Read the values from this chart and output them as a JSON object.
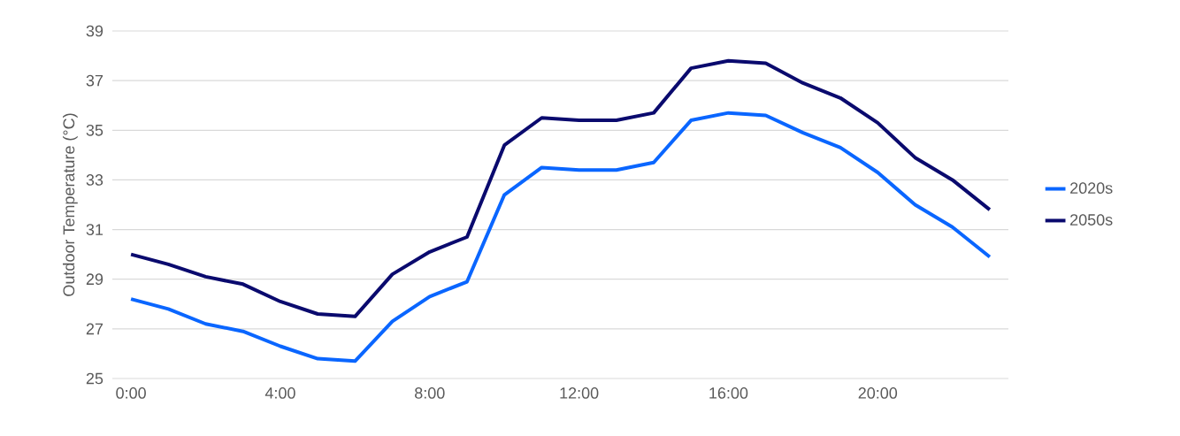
{
  "chart_data": {
    "type": "line",
    "ylabel": "Outdoor Temperature (°C)",
    "x": [
      0,
      1,
      2,
      3,
      4,
      5,
      6,
      7,
      8,
      9,
      10,
      11,
      12,
      13,
      14,
      15,
      16,
      17,
      18,
      19,
      20,
      21,
      22,
      23
    ],
    "series": [
      {
        "name": "2020s",
        "color": "#0a66ff",
        "values": [
          28.2,
          27.8,
          27.2,
          26.9,
          26.3,
          25.8,
          25.7,
          27.3,
          28.3,
          28.9,
          32.4,
          33.5,
          33.4,
          33.4,
          33.7,
          35.4,
          35.7,
          35.6,
          34.9,
          34.3,
          33.3,
          32.0,
          31.1,
          29.9
        ]
      },
      {
        "name": "2050s",
        "color": "#0a0a6e",
        "values": [
          30.0,
          29.6,
          29.1,
          28.8,
          28.1,
          27.6,
          27.5,
          29.2,
          30.1,
          30.7,
          34.4,
          35.5,
          35.4,
          35.4,
          35.7,
          37.5,
          37.8,
          37.7,
          36.9,
          36.3,
          35.3,
          33.9,
          33.0,
          31.8
        ]
      }
    ],
    "xlim": [
      -0.5,
      23.5
    ],
    "xticks": [
      {
        "value": 0,
        "label": "0:00"
      },
      {
        "value": 4,
        "label": "4:00"
      },
      {
        "value": 8,
        "label": "8:00"
      },
      {
        "value": 12,
        "label": "12:00"
      },
      {
        "value": 16,
        "label": "16:00"
      },
      {
        "value": 20,
        "label": "20:00"
      }
    ],
    "ylim": [
      25,
      39
    ],
    "yticks": [
      25,
      27,
      29,
      31,
      33,
      35,
      37,
      39
    ],
    "grid": "y",
    "legend": "right",
    "marker": "none",
    "line_style": "solid"
  }
}
